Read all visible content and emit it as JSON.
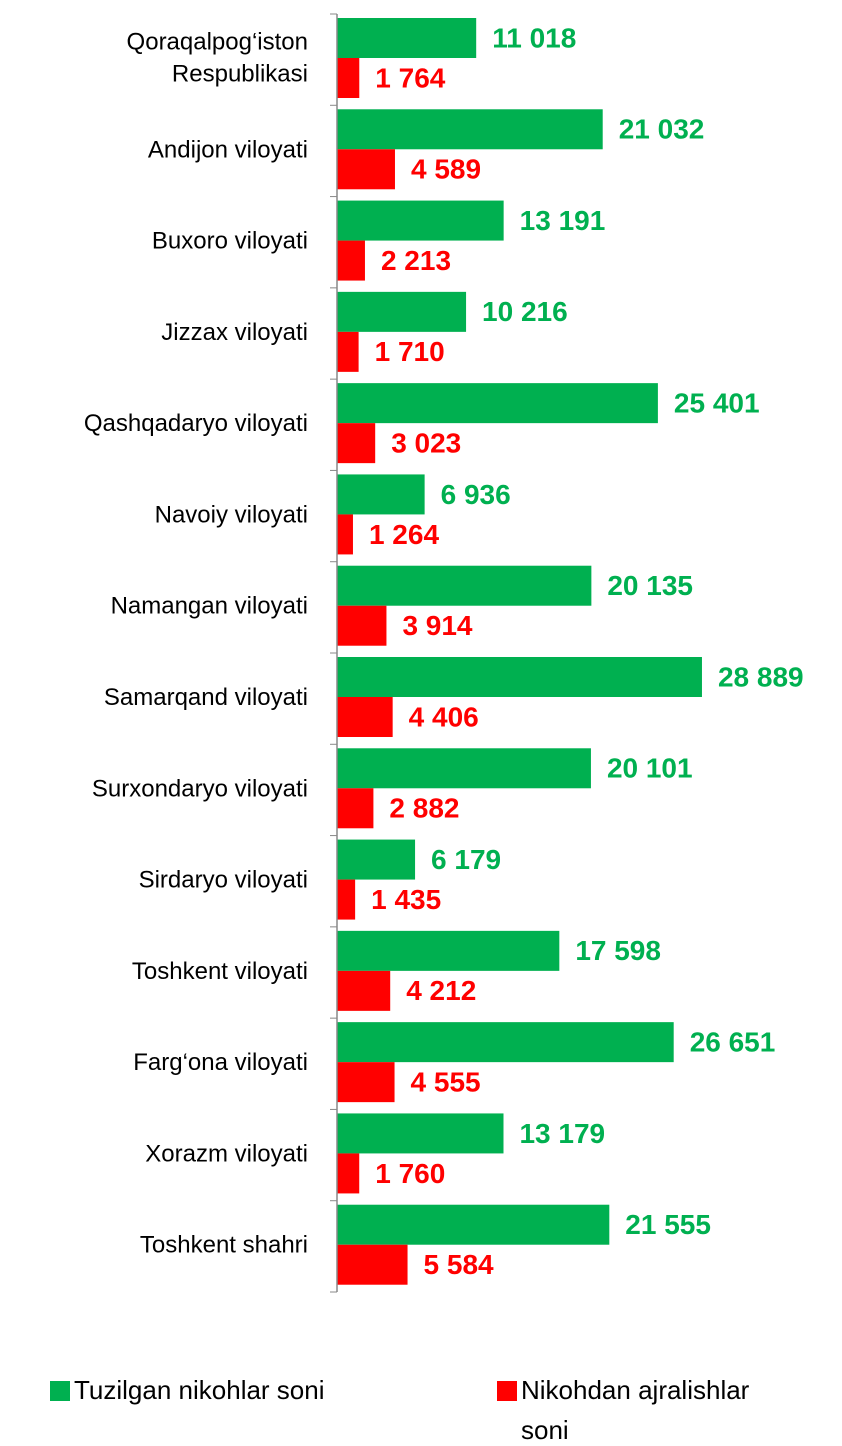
{
  "chart_data": {
    "type": "bar",
    "orientation": "horizontal",
    "categories": [
      "Qoraqalpog‘iston\nRespublikasi",
      "Andijon viloyati",
      "Buxoro viloyati",
      "Jizzax viloyati",
      "Qashqadaryo viloyati",
      "Navoiy viloyati",
      "Namangan viloyati",
      "Samarqand viloyati",
      "Surxondaryo viloyati",
      "Sirdaryo viloyati",
      "Toshkent viloyati",
      "Farg‘ona viloyati",
      "Xorazm viloyati",
      "Toshkent shahri"
    ],
    "series": [
      {
        "name": "Tuzilgan nikohlar soni",
        "color": "#00b050",
        "values": [
          11018,
          21032,
          13191,
          10216,
          25401,
          6936,
          20135,
          28889,
          20101,
          6179,
          17598,
          26651,
          13179,
          21555
        ],
        "value_labels": [
          "11 018",
          "21 032",
          "13 191",
          "10 216",
          "25 401",
          "6 936",
          "20 135",
          "28 889",
          "20 101",
          "6 179",
          "17 598",
          "26 651",
          "13 179",
          "21 555"
        ]
      },
      {
        "name": "Nikohdan ajralishlar\nsoni",
        "color": "#ff0000",
        "values": [
          1764,
          4589,
          2213,
          1710,
          3023,
          1264,
          3914,
          4406,
          2882,
          1435,
          4212,
          4555,
          1760,
          5584
        ],
        "value_labels": [
          "1 764",
          "4 589",
          "2 213",
          "1 710",
          "3 023",
          "1 264",
          "3 914",
          "4 406",
          "2 882",
          "1 435",
          "4 212",
          "4 555",
          "1 760",
          "5 584"
        ]
      }
    ],
    "xlim": [
      0,
      30000
    ],
    "legend": "bottom"
  }
}
